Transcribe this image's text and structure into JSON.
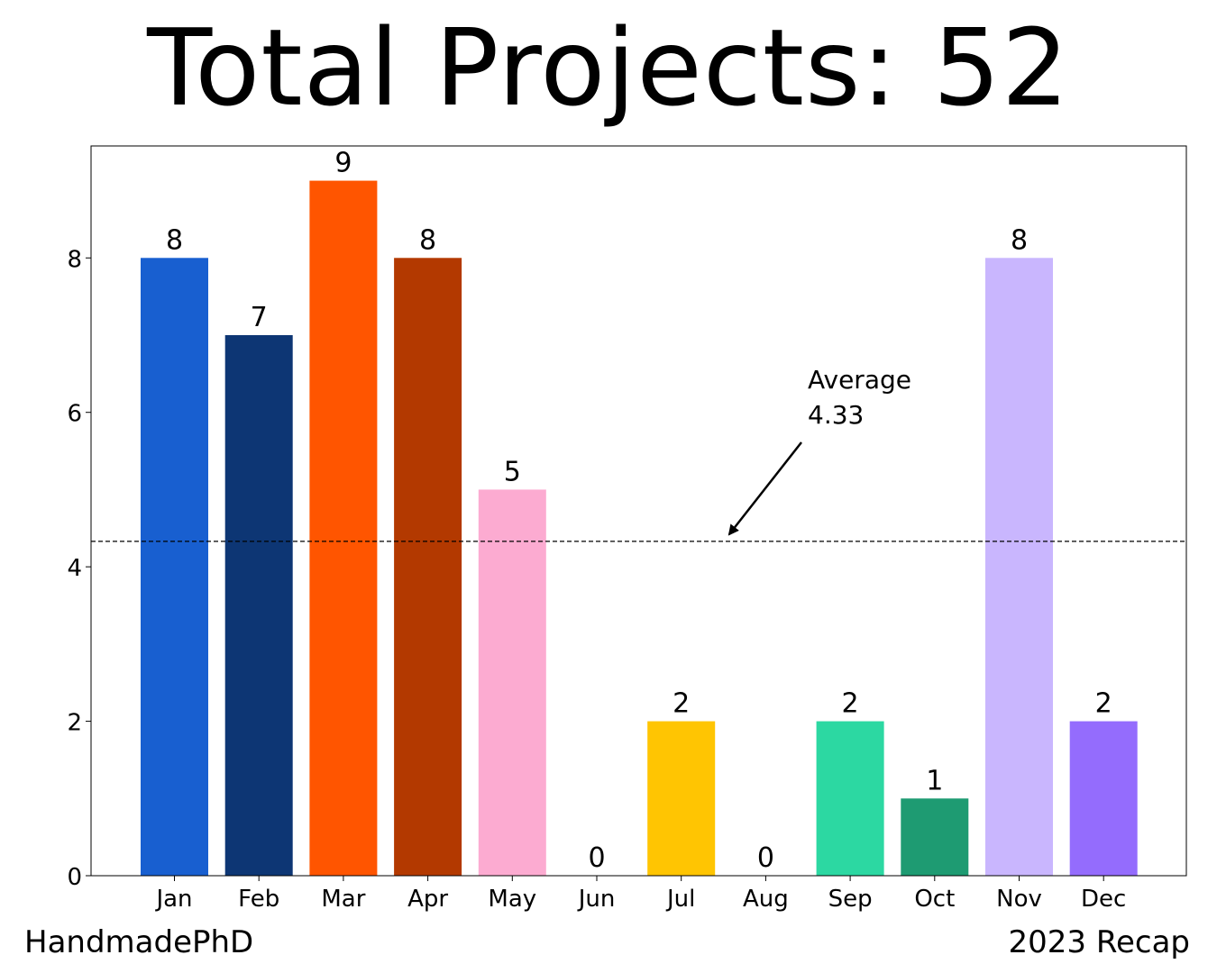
{
  "chart_data": {
    "type": "bar",
    "title": "Total Projects: 52",
    "categories": [
      "Jan",
      "Feb",
      "Mar",
      "Apr",
      "May",
      "Jun",
      "Jul",
      "Aug",
      "Sep",
      "Oct",
      "Nov",
      "Dec"
    ],
    "values": [
      8,
      7,
      9,
      8,
      5,
      0,
      2,
      0,
      2,
      1,
      8,
      2
    ],
    "bar_colors": [
      "#185fd0",
      "#0d3674",
      "#ff5500",
      "#b33900",
      "#fcabd1",
      "#ffffff",
      "#ffc502",
      "#ffffff",
      "#2cd8a2",
      "#1e9b72",
      "#c9b6fe",
      "#946cfd"
    ],
    "data_labels": [
      "8",
      "7",
      "9",
      "8",
      "5",
      "0",
      "2",
      "0",
      "2",
      "1",
      "8",
      "2"
    ],
    "y_ticks": [
      0,
      2,
      4,
      6,
      8
    ],
    "ylim": [
      0,
      9.45
    ],
    "xlabel": "",
    "ylabel": "",
    "grid": false,
    "average": {
      "value": 4.33,
      "line_style": "dashed",
      "label_line1": "Average",
      "label_line2": "4.33"
    }
  },
  "footer": {
    "left_text": "HandmadePhD",
    "right_text": "2023 Recap"
  }
}
